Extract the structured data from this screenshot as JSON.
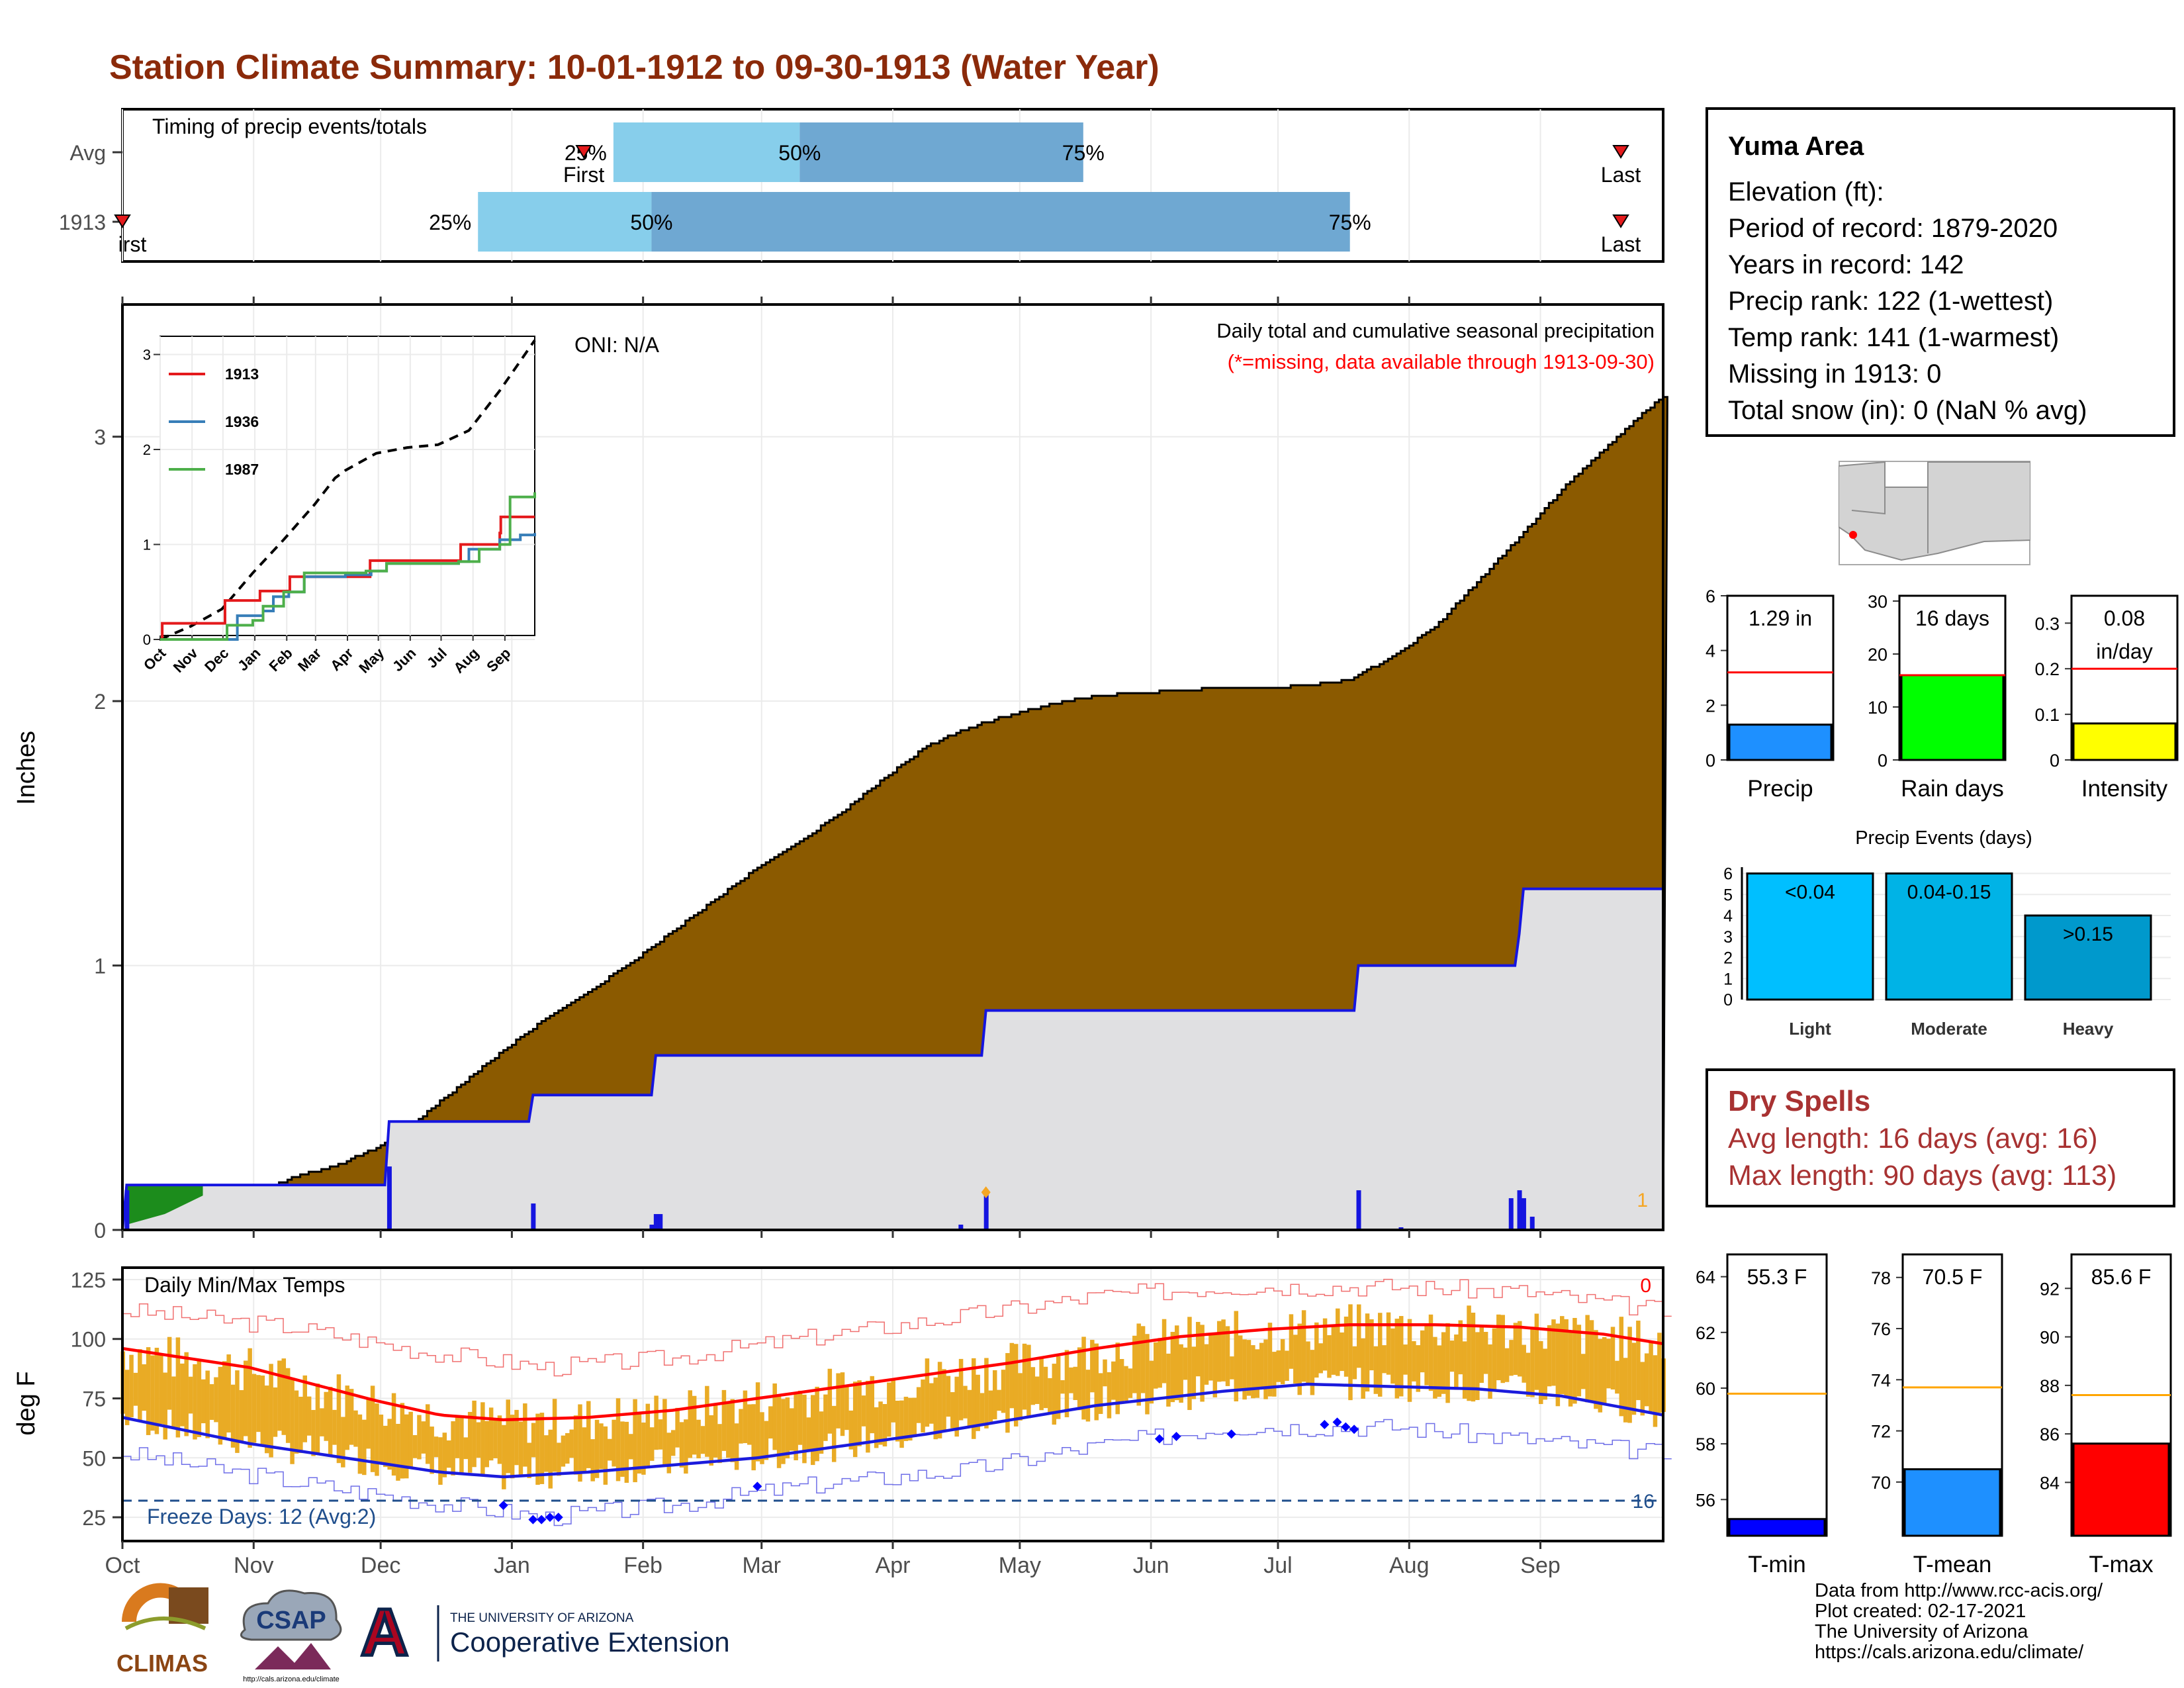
{
  "title": "Station Climate Summary: 10-01-1912 to 09-30-1913 (Water Year)",
  "station": {
    "name": "Yuma Area",
    "lines": [
      "Elevation (ft):",
      "Period of record: 1879-2020",
      "Years in record: 142",
      "Precip rank: 122 (1-wettest)",
      "Temp rank: 141 (1-warmest)",
      "Missing in 1913: 0",
      "Total snow (in): 0 (NaN % avg)"
    ]
  },
  "dry_spells": {
    "title": "Dry Spells",
    "avg": "Avg length: 16 days (avg: 16)",
    "max": "Max length: 90 days (avg: 113)"
  },
  "footer": {
    "lines": [
      "Data from http://www.rcc-acis.org/",
      "Plot created: 02-17-2021",
      "The University of Arizona",
      "https://cals.arizona.edu/climate/"
    ]
  },
  "logos": {
    "climas": "CLIMAS",
    "csap": "CSAP",
    "csap_url": "http://cals.arizona.edu/climate",
    "ua_small": "THE UNIVERSITY OF ARIZONA",
    "ua_big": "Cooperative Extension",
    "ua_letter": "A"
  },
  "colors": {
    "title": "#8b2a0a",
    "cumulative_fill": "#8b5a00",
    "normal_fill": "#e0e0e2",
    "timing_light": "#87ceeb",
    "timing_dark": "#6fa8d2",
    "temp_bars": "#e9ab25",
    "tmax_line": "#ff0000",
    "tmin_line": "#1b1bdc"
  },
  "chart_data": [
    {
      "id": "timing",
      "type": "bar",
      "title": "Timing of precip events/totals",
      "rows": [
        {
          "label": "Avg",
          "first": "Jan 18",
          "p25": "Jan 25",
          "p50": "Mar 10",
          "p75": "May 16",
          "last": "Sep 20"
        },
        {
          "label": "1913",
          "first": "Oct 1",
          "p25": "Dec 24",
          "p50": "Feb 3",
          "p75": "Jul 18",
          "last": "Sep 20"
        }
      ],
      "labels": {
        "p25": "25%",
        "p50": "50%",
        "p75": "75%",
        "first": "First",
        "last": "Last",
        "first_clipped": "irst"
      }
    },
    {
      "id": "precip",
      "type": "area",
      "title": "Daily total and cumulative seasonal precipitation",
      "subtitle": "(*=missing, data available through 1913-09-30)",
      "oni": "ONI: N/A",
      "ylabel": "Inches",
      "ylim": [
        0,
        3.5
      ],
      "yticks": [
        0,
        1,
        2,
        3
      ],
      "months": [
        "Oct",
        "Nov",
        "Dec",
        "Jan",
        "Feb",
        "Mar",
        "Apr",
        "May",
        "Jun",
        "Jul",
        "Aug",
        "Sep"
      ],
      "cum_normal": [
        [
          0,
          0
        ],
        [
          5,
          0.03
        ],
        [
          10,
          0.05
        ],
        [
          20,
          0.08
        ],
        [
          30,
          0.12
        ],
        [
          40,
          0.2
        ],
        [
          50,
          0.24
        ],
        [
          60,
          0.31
        ],
        [
          70,
          0.42
        ],
        [
          80,
          0.55
        ],
        [
          90,
          0.68
        ],
        [
          100,
          0.8
        ],
        [
          110,
          0.9
        ],
        [
          120,
          1.01
        ],
        [
          130,
          1.13
        ],
        [
          140,
          1.25
        ],
        [
          150,
          1.37
        ],
        [
          160,
          1.47
        ],
        [
          170,
          1.58
        ],
        [
          180,
          1.71
        ],
        [
          190,
          1.83
        ],
        [
          200,
          1.9
        ],
        [
          210,
          1.95
        ],
        [
          220,
          1.99
        ],
        [
          230,
          2.02
        ],
        [
          240,
          2.03
        ],
        [
          250,
          2.04
        ],
        [
          260,
          2.05
        ],
        [
          270,
          2.05
        ],
        [
          280,
          2.06
        ],
        [
          290,
          2.08
        ],
        [
          300,
          2.17
        ],
        [
          310,
          2.28
        ],
        [
          320,
          2.45
        ],
        [
          330,
          2.62
        ],
        [
          340,
          2.8
        ],
        [
          350,
          2.95
        ],
        [
          360,
          3.1
        ],
        [
          364,
          3.15
        ]
      ],
      "cum_1913": [
        [
          0,
          0
        ],
        [
          1,
          0.17
        ],
        [
          62,
          0.17
        ],
        [
          63,
          0.41
        ],
        [
          64,
          0.41
        ],
        [
          96,
          0.41
        ],
        [
          97,
          0.51
        ],
        [
          98,
          0.51
        ],
        [
          125,
          0.51
        ],
        [
          126,
          0.66
        ],
        [
          127,
          0.66
        ],
        [
          203,
          0.66
        ],
        [
          204,
          0.83
        ],
        [
          205,
          0.83
        ],
        [
          291,
          0.83
        ],
        [
          292,
          1.0
        ],
        [
          293,
          1.0
        ],
        [
          329,
          1.0
        ],
        [
          330,
          1.12
        ],
        [
          331,
          1.29
        ],
        [
          364,
          1.29
        ]
      ],
      "daily_1913": [
        [
          1,
          0.15
        ],
        [
          63,
          0.24
        ],
        [
          97,
          0.1
        ],
        [
          125,
          0.02
        ],
        [
          126,
          0.06
        ],
        [
          127,
          0.06
        ],
        [
          198,
          0.02
        ],
        [
          204,
          0.15
        ],
        [
          292,
          0.15
        ],
        [
          302,
          0.01
        ],
        [
          328,
          0.12
        ],
        [
          330,
          0.15
        ],
        [
          331,
          0.12
        ],
        [
          333,
          0.05
        ]
      ],
      "marker_label": "1",
      "missing_count": "1"
    },
    {
      "id": "inset",
      "type": "line",
      "ylim": [
        0,
        3
      ],
      "yticks": [
        0,
        1,
        2,
        3
      ],
      "months": [
        "Oct",
        "Nov",
        "Dec",
        "Jan",
        "Feb",
        "Mar",
        "Apr",
        "May",
        "Jun",
        "Jul",
        "Aug",
        "Sep"
      ],
      "series": [
        {
          "name": "1913",
          "color": "#e41a1c",
          "points": [
            [
              0,
              0
            ],
            [
              2,
              0.17
            ],
            [
              62,
              0.17
            ],
            [
              63,
              0.41
            ],
            [
              96,
              0.41
            ],
            [
              97,
              0.51
            ],
            [
              125,
              0.51
            ],
            [
              126,
              0.66
            ],
            [
              203,
              0.66
            ],
            [
              204,
              0.83
            ],
            [
              291,
              0.83
            ],
            [
              292,
              1.0
            ],
            [
              329,
              1.0
            ],
            [
              330,
              1.12
            ],
            [
              331,
              1.29
            ],
            [
              364,
              1.29
            ]
          ]
        },
        {
          "name": "1936",
          "color": "#377eb8",
          "points": [
            [
              0,
              0
            ],
            [
              70,
              0
            ],
            [
              75,
              0.25
            ],
            [
              100,
              0.3
            ],
            [
              110,
              0.45
            ],
            [
              125,
              0.5
            ],
            [
              140,
              0.66
            ],
            [
              180,
              0.68
            ],
            [
              205,
              0.72
            ],
            [
              220,
              0.8
            ],
            [
              290,
              0.82
            ],
            [
              300,
              0.95
            ],
            [
              330,
              1.05
            ],
            [
              350,
              1.1
            ],
            [
              364,
              1.12
            ]
          ]
        },
        {
          "name": "1987",
          "color": "#4daf4a",
          "points": [
            [
              0,
              0
            ],
            [
              60,
              0
            ],
            [
              65,
              0.15
            ],
            [
              90,
              0.2
            ],
            [
              100,
              0.35
            ],
            [
              120,
              0.5
            ],
            [
              140,
              0.7
            ],
            [
              200,
              0.72
            ],
            [
              220,
              0.8
            ],
            [
              290,
              0.82
            ],
            [
              310,
              0.95
            ],
            [
              330,
              1.0
            ],
            [
              340,
              1.5
            ],
            [
              364,
              1.55
            ]
          ]
        }
      ],
      "normal": [
        [
          0,
          0
        ],
        [
          30,
          0.14
        ],
        [
          60,
          0.32
        ],
        [
          90,
          0.7
        ],
        [
          120,
          1.05
        ],
        [
          150,
          1.42
        ],
        [
          170,
          1.7
        ],
        [
          180,
          1.78
        ],
        [
          210,
          1.96
        ],
        [
          240,
          2.02
        ],
        [
          270,
          2.05
        ],
        [
          300,
          2.2
        ],
        [
          330,
          2.62
        ],
        [
          364,
          3.15
        ]
      ]
    },
    {
      "id": "temps",
      "type": "bar",
      "title": "Daily Min/Max Temps",
      "ylabel": "deg F",
      "ylim": [
        15,
        130
      ],
      "yticks": [
        25,
        50,
        75,
        100,
        125
      ],
      "months": [
        "Oct",
        "Nov",
        "Dec",
        "Jan",
        "Feb",
        "Mar",
        "Apr",
        "May",
        "Jun",
        "Jul",
        "Aug",
        "Sep"
      ],
      "freeze_label": "Freeze Days: 12 (Avg:2)",
      "freeze_line": 32,
      "freeze_right_label": "16",
      "top_right_label": "0",
      "tmax_normal": [
        [
          0,
          96
        ],
        [
          30,
          88
        ],
        [
          60,
          74
        ],
        [
          75,
          68
        ],
        [
          90,
          66
        ],
        [
          110,
          67
        ],
        [
          130,
          70
        ],
        [
          150,
          75
        ],
        [
          170,
          80
        ],
        [
          190,
          85
        ],
        [
          210,
          90
        ],
        [
          230,
          96
        ],
        [
          250,
          101
        ],
        [
          270,
          104
        ],
        [
          290,
          106
        ],
        [
          310,
          106
        ],
        [
          330,
          105
        ],
        [
          350,
          102
        ],
        [
          364,
          98
        ]
      ],
      "tmin_normal": [
        [
          0,
          67
        ],
        [
          30,
          56
        ],
        [
          60,
          48
        ],
        [
          75,
          44
        ],
        [
          90,
          42
        ],
        [
          110,
          44
        ],
        [
          130,
          47
        ],
        [
          150,
          50
        ],
        [
          170,
          55
        ],
        [
          190,
          60
        ],
        [
          210,
          66
        ],
        [
          230,
          72
        ],
        [
          260,
          78
        ],
        [
          280,
          81
        ],
        [
          300,
          80
        ],
        [
          320,
          79
        ],
        [
          340,
          76
        ],
        [
          364,
          68
        ]
      ],
      "tmax_record": [
        [
          0,
          112
        ],
        [
          40,
          105
        ],
        [
          70,
          95
        ],
        [
          100,
          88
        ],
        [
          130,
          92
        ],
        [
          160,
          100
        ],
        [
          200,
          110
        ],
        [
          230,
          118
        ],
        [
          260,
          122
        ],
        [
          300,
          122
        ],
        [
          330,
          120
        ],
        [
          364,
          112
        ]
      ],
      "tmin_record": [
        [
          0,
          52
        ],
        [
          40,
          40
        ],
        [
          70,
          32
        ],
        [
          100,
          25
        ],
        [
          130,
          30
        ],
        [
          160,
          38
        ],
        [
          200,
          45
        ],
        [
          230,
          55
        ],
        [
          260,
          63
        ],
        [
          300,
          63
        ],
        [
          330,
          58
        ],
        [
          364,
          52
        ]
      ],
      "freeze_days": [
        [
          90,
          30
        ],
        [
          97,
          24
        ],
        [
          99,
          24
        ],
        [
          101,
          25
        ],
        [
          103,
          25
        ],
        [
          150,
          38
        ],
        [
          245,
          58
        ],
        [
          249,
          59
        ],
        [
          262,
          60
        ],
        [
          284,
          64
        ],
        [
          287,
          65
        ],
        [
          289,
          63
        ],
        [
          291,
          62
        ]
      ]
    },
    {
      "id": "precip_summary",
      "type": "bar",
      "panels": [
        {
          "label": "Precip",
          "value": 1.29,
          "value_text": "1.29 in",
          "ylim": [
            0,
            6
          ],
          "yticks": [
            0,
            2,
            4,
            6
          ],
          "normal": 3.2,
          "color": "#1e90ff"
        },
        {
          "label": "Rain days",
          "value": 16,
          "value_text": "16 days",
          "ylim": [
            0,
            31
          ],
          "yticks": [
            0,
            10,
            20,
            30
          ],
          "normal": 16,
          "color": "#00ff00"
        },
        {
          "label": "Intensity",
          "value": 0.08,
          "value_text": "0.08",
          "value_text2": "in/day",
          "ylim": [
            0,
            0.36
          ],
          "yticks": [
            0,
            0.1,
            0.2,
            0.3
          ],
          "normal": 0.2,
          "color": "#ffff00"
        }
      ]
    },
    {
      "id": "precip_events",
      "type": "bar",
      "title": "Precip Events (days)",
      "categories": [
        "Light",
        "Moderate",
        "Heavy"
      ],
      "bar_labels": [
        "<0.04",
        "0.04-0.15",
        ">0.15"
      ],
      "values": [
        6,
        6,
        4
      ],
      "ylim": [
        0,
        6.3
      ],
      "yticks": [
        0,
        1,
        2,
        3,
        4,
        5,
        6
      ],
      "colors": [
        "#00bfff",
        "#00b3e6",
        "#0099cc"
      ]
    },
    {
      "id": "temp_summary",
      "type": "bar",
      "panels": [
        {
          "label": "T-min",
          "value": 55.3,
          "value_text": "55.3 F",
          "ylim": [
            54.7,
            64.8
          ],
          "yticks": [
            56,
            58,
            60,
            62,
            64
          ],
          "normal": 59.8,
          "color": "#0000ff"
        },
        {
          "label": "T-mean",
          "value": 70.5,
          "value_text": "70.5 F",
          "ylim": [
            67.9,
            78.9
          ],
          "yticks": [
            70,
            72,
            74,
            76,
            78
          ],
          "normal": 73.7,
          "color": "#1e90ff"
        },
        {
          "label": "T-max",
          "value": 85.6,
          "value_text": "85.6 F",
          "ylim": [
            81.8,
            93.4
          ],
          "yticks": [
            84,
            86,
            88,
            90,
            92
          ],
          "normal": 87.6,
          "color": "#ff0000"
        }
      ]
    }
  ]
}
